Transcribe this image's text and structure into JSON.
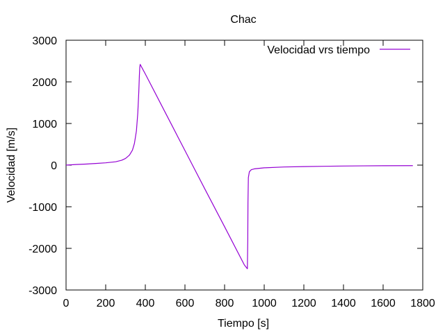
{
  "chart_data": {
    "type": "line",
    "title": "Chac",
    "xlabel": "Tiempo [s]",
    "ylabel": "Velocidad [m/s]",
    "xlim": [
      0,
      1800
    ],
    "ylim": [
      -3000,
      3000
    ],
    "xticks": [
      0,
      200,
      400,
      600,
      800,
      1000,
      1200,
      1400,
      1600,
      1800
    ],
    "yticks": [
      -3000,
      -2000,
      -1000,
      0,
      1000,
      2000,
      3000
    ],
    "grid": false,
    "legend_position": "top-right",
    "series": [
      {
        "name": "Velocidad vrs tiempo",
        "color": "#9400d3",
        "x": [
          0,
          50,
          100,
          150,
          200,
          250,
          280,
          300,
          320,
          335,
          345,
          355,
          362,
          367,
          370,
          372,
          374,
          400,
          500,
          600,
          700,
          800,
          900,
          915,
          917,
          918,
          920,
          925,
          935,
          950,
          1000,
          1100,
          1200,
          1300,
          1400,
          1500,
          1600,
          1750
        ],
        "y": [
          0,
          15,
          25,
          40,
          55,
          80,
          115,
          160,
          240,
          360,
          520,
          820,
          1250,
          1750,
          2150,
          2350,
          2420,
          2190,
          1270,
          350,
          -570,
          -1480,
          -2400,
          -2490,
          -1800,
          -900,
          -300,
          -160,
          -110,
          -90,
          -65,
          -45,
          -35,
          -28,
          -22,
          -18,
          -15,
          -12
        ]
      }
    ]
  }
}
